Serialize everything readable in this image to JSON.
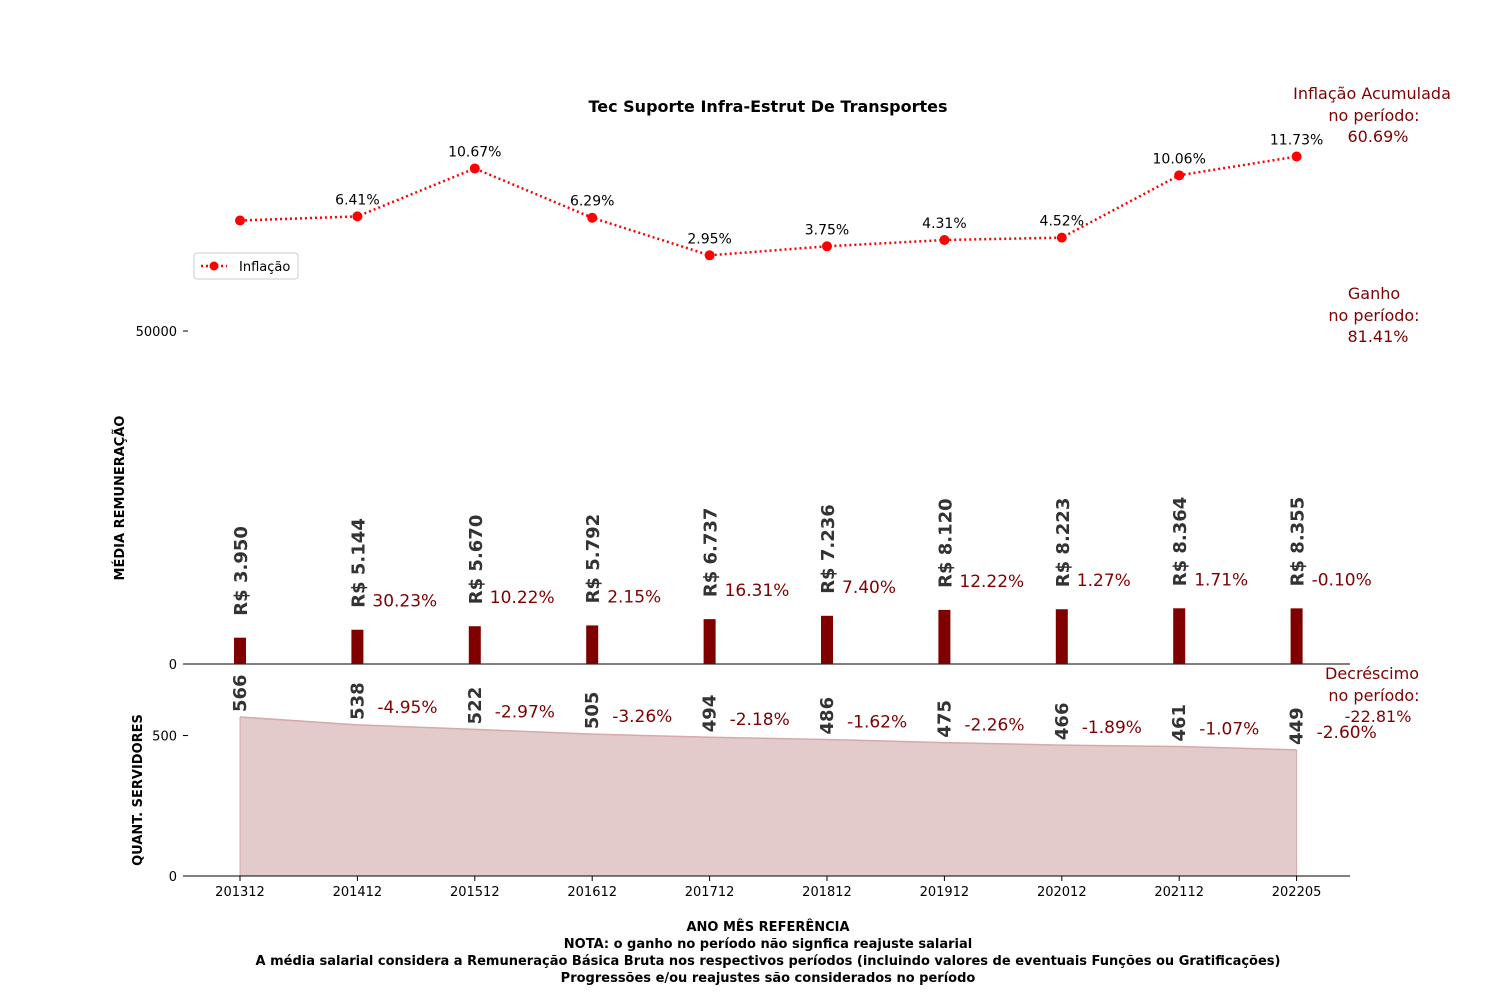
{
  "chart_data": {
    "type": "bar",
    "title": "Tec Suporte Infra-Estrut De Transportes",
    "categories": [
      "201312",
      "201412",
      "201512",
      "201612",
      "201712",
      "201812",
      "201912",
      "202012",
      "202112",
      "202205"
    ],
    "inflation": {
      "legend": "Inflação",
      "values": [
        null,
        6.41,
        10.67,
        6.29,
        2.95,
        3.75,
        4.31,
        4.52,
        10.06,
        11.73
      ],
      "labels": [
        "",
        "6.41%",
        "10.67%",
        "6.29%",
        "2.95%",
        "3.75%",
        "4.31%",
        "4.52%",
        "10.06%",
        "11.73%"
      ],
      "color": "#ff0000"
    },
    "salary": {
      "ylabel": "MÉDIA REMUNERAÇÃO",
      "values": [
        3950,
        5144,
        5670,
        5792,
        6737,
        7236,
        8120,
        8223,
        8364,
        8355
      ],
      "labels": [
        "R$ 3.950",
        "R$ 5.144",
        "R$ 5.670",
        "R$ 5.792",
        "R$ 6.737",
        "R$ 7.236",
        "R$ 8.120",
        "R$ 8.223",
        "R$ 8.364",
        "R$ 8.355"
      ],
      "changes": [
        "",
        "30.23%",
        "10.22%",
        "2.15%",
        "16.31%",
        "7.40%",
        "12.22%",
        "1.27%",
        "1.71%",
        "-0.10%"
      ],
      "yticks": [
        "0",
        "50000"
      ],
      "ylim": [
        0,
        50000
      ],
      "color": "#800000"
    },
    "staff": {
      "ylabel": "QUANT. SERVIDORES",
      "values": [
        566,
        538,
        522,
        505,
        494,
        486,
        475,
        466,
        461,
        449
      ],
      "labels": [
        "566",
        "538",
        "522",
        "505",
        "494",
        "486",
        "475",
        "466",
        "461",
        "449"
      ],
      "changes": [
        "",
        "-4.95%",
        "-2.97%",
        "-3.26%",
        "-2.18%",
        "-1.62%",
        "-2.26%",
        "-1.89%",
        "-1.07%",
        "-2.60%"
      ],
      "yticks": [
        "0",
        "500"
      ],
      "ylim": [
        0,
        566
      ],
      "color": "#e3cacb"
    },
    "xlabel": "ANO MÊS REFERÊNCIA",
    "notes": [
      "NOTA: o ganho no período não signfica reajuste salarial",
      "A média salarial considera a Remuneração Básica Bruta nos respectivos períodos (incluindo valores de eventuais Funções ou Gratificações)",
      "Progressões e/ou reajustes são considerados no período"
    ],
    "summary": {
      "inflation": [
        "Inflação Acumulada",
        "no período:",
        "60.69%"
      ],
      "gain": [
        "Ganho",
        "no período:",
        "81.41%"
      ],
      "decrease": [
        "Decréscimo",
        "no período:",
        "-22.81%"
      ]
    },
    "annotation_color": "#800000"
  }
}
